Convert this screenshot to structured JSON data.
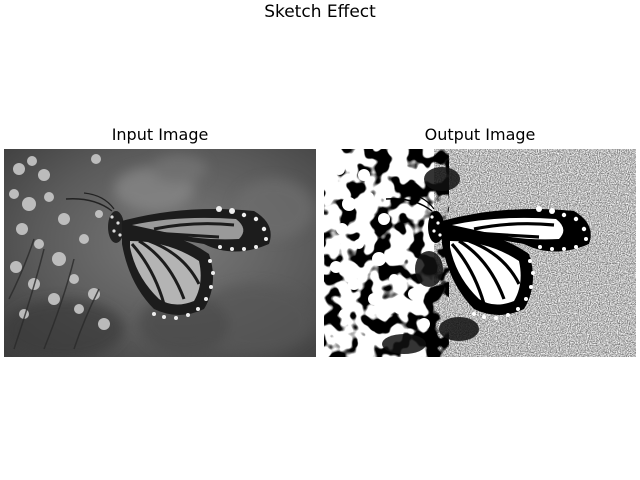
{
  "figure": {
    "title": "Sketch Effect"
  },
  "panels": [
    {
      "title": "Input Image",
      "image": "grayscale photo of monarch butterfly on flowers"
    },
    {
      "title": "Output Image",
      "image": "black and white sketch of monarch butterfly on flowers"
    }
  ],
  "colors": {
    "background": "#ffffff",
    "text": "#000000"
  }
}
